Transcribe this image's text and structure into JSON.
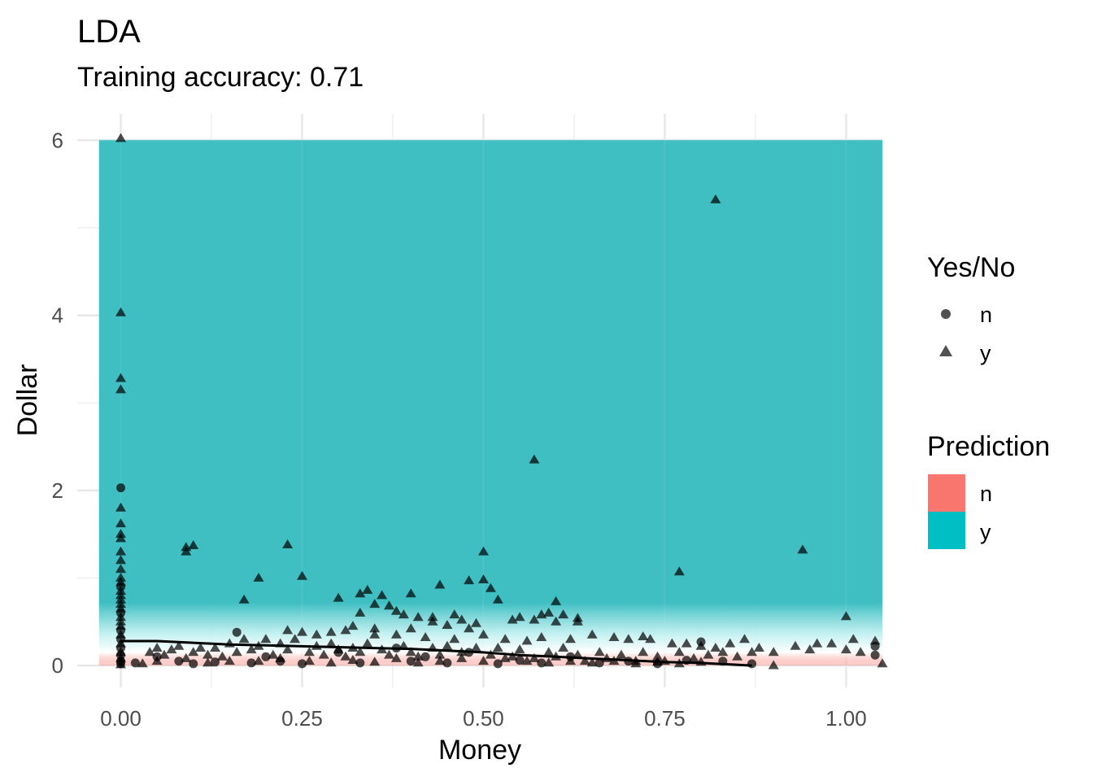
{
  "chart_data": {
    "type": "scatter",
    "title": "LDA",
    "subtitle": "Training accuracy: 0.71",
    "xlabel": "Money",
    "ylabel": "Dollar",
    "xlim": [
      -0.06,
      1.05
    ],
    "ylim": [
      -0.25,
      6.3
    ],
    "x_ticks": [
      0,
      0.25,
      0.5,
      0.75,
      1
    ],
    "x_tick_labels": [
      "0.00",
      "0.25",
      "0.50",
      "0.75",
      "1.00"
    ],
    "y_ticks": [
      0,
      2,
      4,
      6
    ],
    "y_tick_labels": [
      "0",
      "2",
      "4",
      "6"
    ],
    "grid": true,
    "background_region": {
      "x": [
        -0.03,
        1.05
      ],
      "y": [
        0,
        6
      ]
    },
    "legend_placement": "right",
    "legend_shape": {
      "title": "Yes/No",
      "items": [
        {
          "label": "n",
          "shape": "circle"
        },
        {
          "label": "y",
          "shape": "triangle"
        }
      ]
    },
    "legend_fill": {
      "title": "Prediction",
      "items": [
        {
          "label": "n",
          "color": "#F8766D"
        },
        {
          "label": "y",
          "color": "#00BFC4"
        }
      ]
    },
    "series": [
      {
        "name": "n",
        "shape": "circle",
        "points": [
          [
            0,
            2.03
          ],
          [
            0,
            0.9
          ],
          [
            0,
            0.6
          ],
          [
            0,
            0.4
          ],
          [
            0,
            0.3
          ],
          [
            0,
            0.2
          ],
          [
            0,
            0.12
          ],
          [
            0,
            0.05
          ],
          [
            0,
            0.02
          ],
          [
            0.02,
            0.03
          ],
          [
            0.05,
            0.1
          ],
          [
            0.08,
            0.05
          ],
          [
            0.1,
            0.02
          ],
          [
            0.13,
            0.04
          ],
          [
            0.16,
            0.38
          ],
          [
            0.18,
            0.03
          ],
          [
            0.2,
            0.1
          ],
          [
            0.22,
            0.05
          ],
          [
            0.25,
            0.02
          ],
          [
            0.3,
            0.15
          ],
          [
            0.33,
            0.03
          ],
          [
            0.38,
            0.2
          ],
          [
            0.4,
            0.05
          ],
          [
            0.42,
            0.1
          ],
          [
            0.45,
            0.03
          ],
          [
            0.48,
            0.15
          ],
          [
            0.52,
            0.02
          ],
          [
            0.55,
            0.06
          ],
          [
            0.58,
            0.03
          ],
          [
            0.62,
            0.1
          ],
          [
            0.66,
            0.03
          ],
          [
            0.7,
            0.05
          ],
          [
            0.74,
            0.02
          ],
          [
            0.78,
            0.06
          ],
          [
            0.8,
            0.27
          ],
          [
            0.83,
            0.05
          ],
          [
            0.87,
            0.02
          ],
          [
            1.04,
            0.12
          ],
          [
            1.04,
            0.22
          ]
        ]
      },
      {
        "name": "y",
        "shape": "triangle",
        "points": [
          [
            0,
            6.02
          ],
          [
            0,
            4.03
          ],
          [
            0,
            3.28
          ],
          [
            0,
            3.15
          ],
          [
            0,
            1.8
          ],
          [
            0,
            1.62
          ],
          [
            0,
            1.5
          ],
          [
            0,
            1.45
          ],
          [
            0,
            1.3
          ],
          [
            0,
            1.2
          ],
          [
            0,
            1.1
          ],
          [
            0,
            1.0
          ],
          [
            0,
            0.95
          ],
          [
            0,
            0.85
          ],
          [
            0,
            0.8
          ],
          [
            0,
            0.75
          ],
          [
            0,
            0.7
          ],
          [
            0,
            0.65
          ],
          [
            0,
            0.55
          ],
          [
            0,
            0.5
          ],
          [
            0,
            0.45
          ],
          [
            0,
            0.35
          ],
          [
            0,
            0.25
          ],
          [
            0,
            0.15
          ],
          [
            0,
            0.08
          ],
          [
            0,
            0.01
          ],
          [
            0.82,
            5.32
          ],
          [
            0.57,
            2.35
          ],
          [
            0.09,
            1.35
          ],
          [
            0.1,
            1.37
          ],
          [
            0.09,
            1.3
          ],
          [
            0.23,
            1.38
          ],
          [
            0.94,
            1.32
          ],
          [
            0.5,
            1.3
          ],
          [
            0.19,
            1.0
          ],
          [
            0.25,
            1.02
          ],
          [
            0.44,
            0.92
          ],
          [
            0.5,
            0.98
          ],
          [
            0.48,
            0.97
          ],
          [
            0.77,
            1.07
          ],
          [
            0.51,
            0.88
          ],
          [
            0.17,
            0.75
          ],
          [
            0.3,
            0.77
          ],
          [
            0.33,
            0.82
          ],
          [
            0.34,
            0.86
          ],
          [
            0.36,
            0.8
          ],
          [
            0.4,
            0.82
          ],
          [
            0.52,
            0.75
          ],
          [
            0.6,
            0.73
          ],
          [
            0.35,
            0.7
          ],
          [
            0.37,
            0.68
          ],
          [
            0.38,
            0.62
          ],
          [
            0.33,
            0.6
          ],
          [
            0.39,
            0.58
          ],
          [
            0.41,
            0.55
          ],
          [
            0.43,
            0.55
          ],
          [
            0.46,
            0.58
          ],
          [
            0.47,
            0.52
          ],
          [
            0.49,
            0.48
          ],
          [
            0.54,
            0.52
          ],
          [
            0.55,
            0.55
          ],
          [
            0.58,
            0.58
          ],
          [
            0.59,
            0.6
          ],
          [
            0.61,
            0.58
          ],
          [
            0.63,
            0.54
          ],
          [
            0.57,
            0.52
          ],
          [
            0.6,
            0.5
          ],
          [
            0.63,
            0.5
          ],
          [
            0.32,
            0.45
          ],
          [
            0.35,
            0.42
          ],
          [
            0.4,
            0.42
          ],
          [
            0.43,
            0.5
          ],
          [
            0.45,
            0.46
          ],
          [
            0.48,
            0.42
          ],
          [
            1.0,
            0.56
          ],
          [
            0.23,
            0.4
          ],
          [
            0.25,
            0.38
          ],
          [
            0.27,
            0.35
          ],
          [
            0.29,
            0.38
          ],
          [
            0.31,
            0.4
          ],
          [
            0.35,
            0.35
          ],
          [
            0.38,
            0.35
          ],
          [
            0.42,
            0.32
          ],
          [
            0.46,
            0.3
          ],
          [
            0.5,
            0.35
          ],
          [
            0.53,
            0.3
          ],
          [
            0.56,
            0.28
          ],
          [
            0.58,
            0.32
          ],
          [
            0.62,
            0.3
          ],
          [
            0.65,
            0.35
          ],
          [
            0.68,
            0.32
          ],
          [
            0.7,
            0.3
          ],
          [
            0.72,
            0.33
          ],
          [
            0.73,
            0.3
          ],
          [
            0.76,
            0.25
          ],
          [
            0.78,
            0.25
          ],
          [
            0.8,
            0.22
          ],
          [
            0.82,
            0.2
          ],
          [
            0.84,
            0.25
          ],
          [
            0.86,
            0.3
          ],
          [
            0.88,
            0.2
          ],
          [
            0.9,
            0.15
          ],
          [
            1.01,
            0.3
          ],
          [
            1.04,
            0.28
          ],
          [
            0.96,
            0.25
          ],
          [
            0.98,
            0.25
          ],
          [
            0.93,
            0.22
          ],
          [
            0.95,
            0.18
          ],
          [
            1.0,
            0.18
          ],
          [
            1.02,
            0.15
          ],
          [
            0.04,
            0.15
          ],
          [
            0.05,
            0.2
          ],
          [
            0.06,
            0.12
          ],
          [
            0.07,
            0.18
          ],
          [
            0.08,
            0.22
          ],
          [
            0.1,
            0.15
          ],
          [
            0.11,
            0.2
          ],
          [
            0.12,
            0.12
          ],
          [
            0.13,
            0.2
          ],
          [
            0.14,
            0.1
          ],
          [
            0.15,
            0.25
          ],
          [
            0.16,
            0.15
          ],
          [
            0.17,
            0.3
          ],
          [
            0.18,
            0.18
          ],
          [
            0.19,
            0.22
          ],
          [
            0.2,
            0.3
          ],
          [
            0.21,
            0.12
          ],
          [
            0.22,
            0.25
          ],
          [
            0.23,
            0.18
          ],
          [
            0.24,
            0.3
          ],
          [
            0.26,
            0.15
          ],
          [
            0.27,
            0.22
          ],
          [
            0.28,
            0.12
          ],
          [
            0.29,
            0.25
          ],
          [
            0.3,
            0.18
          ],
          [
            0.31,
            0.1
          ],
          [
            0.32,
            0.2
          ],
          [
            0.33,
            0.15
          ],
          [
            0.34,
            0.25
          ],
          [
            0.36,
            0.18
          ],
          [
            0.37,
            0.12
          ],
          [
            0.39,
            0.22
          ],
          [
            0.4,
            0.15
          ],
          [
            0.41,
            0.1
          ],
          [
            0.43,
            0.2
          ],
          [
            0.44,
            0.12
          ],
          [
            0.45,
            0.22
          ],
          [
            0.47,
            0.15
          ],
          [
            0.49,
            0.2
          ],
          [
            0.51,
            0.12
          ],
          [
            0.52,
            0.2
          ],
          [
            0.54,
            0.1
          ],
          [
            0.55,
            0.18
          ],
          [
            0.57,
            0.08
          ],
          [
            0.59,
            0.15
          ],
          [
            0.6,
            0.1
          ],
          [
            0.61,
            0.2
          ],
          [
            0.63,
            0.12
          ],
          [
            0.64,
            0.05
          ],
          [
            0.66,
            0.15
          ],
          [
            0.67,
            0.08
          ],
          [
            0.69,
            0.12
          ],
          [
            0.71,
            0.05
          ],
          [
            0.72,
            0.15
          ],
          [
            0.74,
            0.1
          ],
          [
            0.75,
            0.05
          ],
          [
            0.77,
            0.15
          ],
          [
            0.79,
            0.08
          ],
          [
            0.81,
            0.12
          ],
          [
            0.83,
            0.15
          ],
          [
            0.85,
            0.1
          ],
          [
            0.87,
            0.15
          ],
          [
            0.9,
            0.0
          ],
          [
            1.05,
            0.02
          ],
          [
            0.03,
            0.02
          ],
          [
            0.05,
            0.05
          ],
          [
            0.09,
            0.08
          ],
          [
            0.12,
            0.03
          ],
          [
            0.15,
            0.05
          ],
          [
            0.19,
            0.05
          ],
          [
            0.22,
            0.08
          ],
          [
            0.26,
            0.05
          ],
          [
            0.29,
            0.03
          ],
          [
            0.32,
            0.06
          ],
          [
            0.35,
            0.04
          ],
          [
            0.38,
            0.08
          ],
          [
            0.41,
            0.03
          ],
          [
            0.44,
            0.05
          ],
          [
            0.47,
            0.08
          ],
          [
            0.5,
            0.05
          ],
          [
            0.53,
            0.08
          ],
          [
            0.56,
            0.05
          ],
          [
            0.59,
            0.03
          ],
          [
            0.62,
            0.05
          ],
          [
            0.65,
            0.03
          ],
          [
            0.68,
            0.05
          ],
          [
            0.71,
            0.02
          ],
          [
            0.74,
            0.04
          ],
          [
            0.77,
            0.02
          ],
          [
            0.8,
            0.04
          ]
        ]
      }
    ],
    "smooth_line": [
      [
        0,
        0.28
      ],
      [
        0.05,
        0.28
      ],
      [
        0.1,
        0.26
      ],
      [
        0.15,
        0.24
      ],
      [
        0.2,
        0.23
      ],
      [
        0.25,
        0.22
      ],
      [
        0.3,
        0.21
      ],
      [
        0.35,
        0.2
      ],
      [
        0.4,
        0.19
      ],
      [
        0.45,
        0.17
      ],
      [
        0.5,
        0.15
      ],
      [
        0.55,
        0.12
      ],
      [
        0.6,
        0.1
      ],
      [
        0.65,
        0.08
      ],
      [
        0.7,
        0.06
      ],
      [
        0.75,
        0.04
      ],
      [
        0.8,
        0.03
      ],
      [
        0.87,
        0.0
      ]
    ]
  }
}
